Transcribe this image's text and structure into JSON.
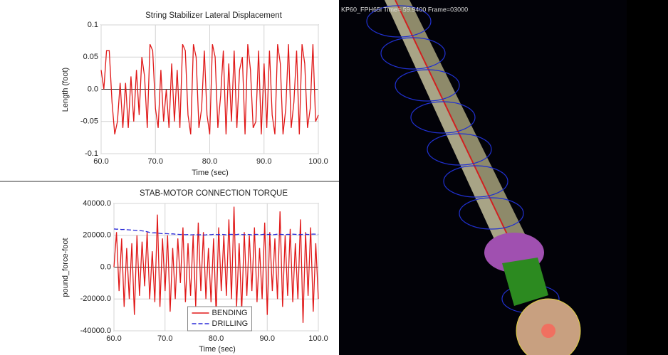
{
  "chart_data": [
    {
      "type": "line",
      "title": "String Stabilizer Lateral Displacement",
      "x_label": "Time (sec)",
      "y_label": "Length (foot)",
      "x": [
        60,
        60.5,
        61,
        61.5,
        62,
        62.5,
        63,
        63.5,
        64,
        64.5,
        65,
        65.5,
        66,
        66.5,
        67,
        67.5,
        68,
        68.5,
        69,
        69.5,
        70,
        70.5,
        71,
        71.5,
        72,
        72.5,
        73,
        73.5,
        74,
        74.5,
        75,
        75.5,
        76,
        76.5,
        77,
        77.5,
        78,
        78.5,
        79,
        79.5,
        80,
        80.5,
        81,
        81.5,
        82,
        82.5,
        83,
        83.5,
        84,
        84.5,
        85,
        85.5,
        86,
        86.5,
        87,
        87.5,
        88,
        88.5,
        89,
        89.5,
        90,
        90.5,
        91,
        91.5,
        92,
        92.5,
        93,
        93.5,
        94,
        94.5,
        95,
        95.5,
        96,
        96.5,
        97,
        97.5,
        98,
        98.5,
        99,
        99.5,
        100
      ],
      "series": [
        {
          "color": "#e01818",
          "style": "solid",
          "values": [
            0.03,
            0.0,
            0.06,
            0.06,
            -0.02,
            -0.07,
            -0.05,
            0.01,
            -0.06,
            0.01,
            -0.06,
            0.02,
            -0.05,
            0.03,
            -0.04,
            0.05,
            0.02,
            -0.06,
            0.07,
            0.06,
            -0.03,
            -0.06,
            0.03,
            -0.05,
            0.0,
            -0.06,
            0.04,
            -0.05,
            0.03,
            -0.06,
            0.07,
            0.06,
            -0.04,
            -0.07,
            0.07,
            0.05,
            -0.06,
            -0.03,
            0.06,
            -0.04,
            -0.07,
            0.07,
            0.05,
            -0.06,
            -0.01,
            0.06,
            -0.07,
            0.04,
            -0.05,
            0.06,
            -0.06,
            0.03,
            0.05,
            -0.07,
            0.07,
            0.03,
            -0.06,
            -0.05,
            0.06,
            -0.07,
            0.04,
            -0.06,
            0.06,
            -0.04,
            -0.07,
            0.07,
            0.04,
            -0.07,
            -0.03,
            0.07,
            -0.06,
            -0.02,
            0.06,
            -0.07,
            0.07,
            0.04,
            -0.06,
            -0.03,
            0.07,
            -0.05,
            -0.04
          ]
        }
      ],
      "xlim": [
        60,
        100
      ],
      "xticks": [
        {
          "value": 60,
          "label": "60.0"
        },
        {
          "value": 70,
          "label": "70.0"
        },
        {
          "value": 80,
          "label": "80.0"
        },
        {
          "value": 90,
          "label": "90.0"
        },
        {
          "value": 100,
          "label": "100.0"
        }
      ],
      "ylim": [
        -0.1,
        0.1
      ],
      "yticks": [
        -0.1,
        -0.05,
        {
          "value": 0,
          "label": "0.0"
        },
        0.05,
        0.1
      ],
      "grid": true
    },
    {
      "type": "line",
      "title": "STAB-MOTOR CONNECTION TORQUE",
      "x_label": "Time (sec)",
      "y_label": "pound_force-foot",
      "x": [
        60,
        60.5,
        61,
        61.5,
        62,
        62.5,
        63,
        63.5,
        64,
        64.5,
        65,
        65.5,
        66,
        66.5,
        67,
        67.5,
        68,
        68.5,
        69,
        69.5,
        70,
        70.5,
        71,
        71.5,
        72,
        72.5,
        73,
        73.5,
        74,
        74.5,
        75,
        75.5,
        76,
        76.5,
        77,
        77.5,
        78,
        78.5,
        79,
        79.5,
        80,
        80.5,
        81,
        81.5,
        82,
        82.5,
        83,
        83.5,
        84,
        84.5,
        85,
        85.5,
        86,
        86.5,
        87,
        87.5,
        88,
        88.5,
        89,
        89.5,
        90,
        90.5,
        91,
        91.5,
        92,
        92.5,
        93,
        93.5,
        94,
        94.5,
        95,
        95.5,
        96,
        96.5,
        97,
        97.5,
        98,
        98.5,
        99,
        99.5,
        100
      ],
      "series": [
        {
          "name": "BENDING",
          "color": "#e01818",
          "style": "solid",
          "values": [
            0,
            22000,
            -15000,
            18000,
            -25000,
            12000,
            -20000,
            15000,
            -30000,
            20000,
            -18000,
            16000,
            -12000,
            22000,
            -20000,
            10000,
            -22000,
            33000,
            -25000,
            18000,
            -15000,
            20000,
            -28000,
            12000,
            -20000,
            18000,
            -10000,
            25000,
            -22000,
            15000,
            -18000,
            20000,
            -25000,
            28000,
            -15000,
            22000,
            -20000,
            12000,
            -22000,
            18000,
            -30000,
            25000,
            -15000,
            20000,
            -18000,
            30000,
            -20000,
            38000,
            -25000,
            15000,
            -28000,
            22000,
            -18000,
            20000,
            -15000,
            25000,
            -22000,
            12000,
            -20000,
            28000,
            -30000,
            22000,
            -15000,
            18000,
            -20000,
            35000,
            -25000,
            20000,
            -18000,
            24000,
            -22000,
            15000,
            -20000,
            30000,
            -35000,
            22000,
            -18000,
            25000,
            -28000,
            15000,
            -20000
          ]
        },
        {
          "name": "DRILLING",
          "color": "#2a2ad8",
          "style": "dashed",
          "values": [
            24000,
            23800,
            23900,
            23600,
            23700,
            23500,
            23400,
            23300,
            23200,
            23100,
            23000,
            22800,
            22600,
            22200,
            21800,
            21500,
            21600,
            21400,
            21200,
            21000,
            21100,
            21000,
            20800,
            20900,
            20700,
            20600,
            20500,
            20600,
            20400,
            20500,
            20300,
            20400,
            20500,
            20300,
            20400,
            20200,
            20300,
            20500,
            20400,
            20600,
            20500,
            20400,
            20600,
            20500,
            20300,
            20500,
            20600,
            20400,
            20500,
            20700,
            20500,
            20400,
            20600,
            20500,
            20300,
            20500,
            20600,
            20400,
            20500,
            20700,
            20500,
            20600,
            20400,
            20500,
            20700,
            20600,
            20500,
            20400,
            20600,
            20500,
            20700,
            20600,
            20500,
            20400,
            20600,
            20700,
            20500,
            20600,
            20800,
            20700,
            20600
          ]
        }
      ],
      "xlim": [
        60,
        100
      ],
      "xticks": [
        {
          "value": 60,
          "label": "60.0"
        },
        {
          "value": 70,
          "label": "70.0"
        },
        {
          "value": 80,
          "label": "80.0"
        },
        {
          "value": 90,
          "label": "90.0"
        },
        {
          "value": 100,
          "label": "100.0"
        }
      ],
      "ylim": [
        -40000,
        40000
      ],
      "yticks": [
        {
          "value": -40000,
          "label": "-40000.0"
        },
        {
          "value": -20000,
          "label": "-20000.0"
        },
        {
          "value": 0,
          "label": "0.0"
        },
        {
          "value": 20000,
          "label": "20000.0"
        },
        {
          "value": 40000,
          "label": "40000.0"
        }
      ],
      "grid": true,
      "legend": "bottom-center"
    }
  ],
  "viewport": {
    "label": "KP60_FPH65i   Time= 59.9400  Frame=03000"
  }
}
